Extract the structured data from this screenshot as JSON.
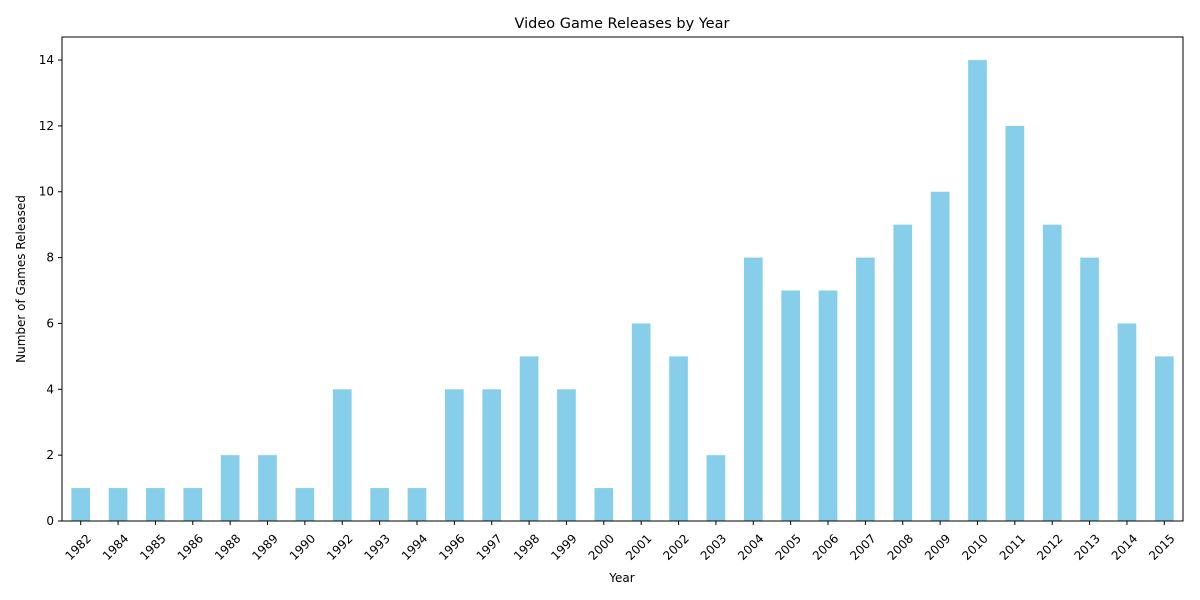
{
  "chart_data": {
    "type": "bar",
    "title": "Video Game Releases by Year",
    "xlabel": "Year",
    "ylabel": "Number of Games Released",
    "categories": [
      "1982",
      "1984",
      "1985",
      "1986",
      "1988",
      "1989",
      "1990",
      "1992",
      "1993",
      "1994",
      "1996",
      "1997",
      "1998",
      "1999",
      "2000",
      "2001",
      "2002",
      "2003",
      "2004",
      "2005",
      "2006",
      "2007",
      "2008",
      "2009",
      "2010",
      "2011",
      "2012",
      "2013",
      "2014",
      "2015"
    ],
    "values": [
      1,
      1,
      1,
      1,
      2,
      2,
      1,
      4,
      1,
      1,
      4,
      4,
      5,
      4,
      1,
      6,
      5,
      2,
      8,
      7,
      7,
      8,
      9,
      10,
      14,
      12,
      9,
      8,
      6,
      5
    ],
    "ylim": [
      0,
      14.7
    ],
    "yticks": [
      0,
      2,
      4,
      6,
      8,
      10,
      12,
      14
    ],
    "grid": false,
    "bar_color": "#87ceeb"
  }
}
